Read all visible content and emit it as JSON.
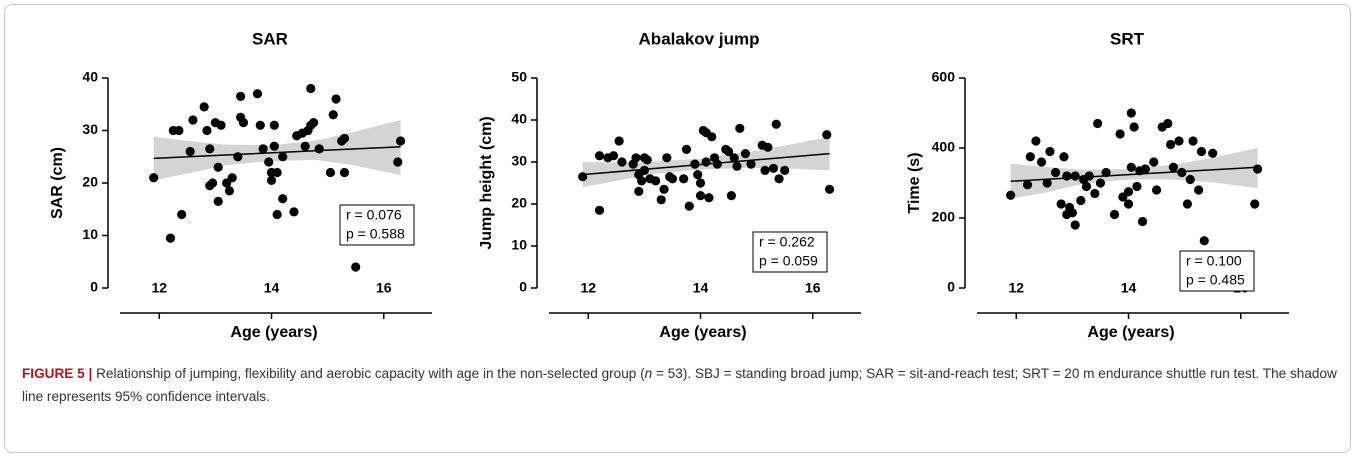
{
  "chart_data": [
    {
      "type": "scatter",
      "title": "SAR",
      "x_label": "Age (years)",
      "y_label": "SAR (cm)",
      "xlim": [
        11.3,
        16.86
      ],
      "xticks": [
        12,
        14,
        16
      ],
      "ylim": [
        0,
        40
      ],
      "yticks": [
        0,
        10,
        20,
        30,
        40
      ],
      "color": "#000000",
      "band_color": "#d4d4d4",
      "x": [
        11.9,
        12.2,
        12.25,
        12.35,
        12.4,
        12.55,
        12.6,
        12.8,
        12.85,
        12.9,
        12.9,
        12.95,
        13.0,
        13.05,
        13.05,
        13.1,
        13.2,
        13.25,
        13.3,
        13.4,
        13.45,
        13.45,
        13.5,
        13.75,
        13.8,
        13.85,
        13.95,
        14.0,
        14.0,
        14.05,
        14.05,
        14.1,
        14.1,
        14.2,
        14.2,
        14.4,
        14.45,
        14.55,
        14.6,
        14.65,
        14.7,
        14.7,
        14.75,
        14.85,
        15.05,
        15.1,
        15.15,
        15.25,
        15.3,
        15.3,
        15.5,
        16.25,
        16.3
      ],
      "values": [
        21,
        9.5,
        30,
        30,
        14,
        26,
        32,
        34.5,
        30,
        19.5,
        26.5,
        20,
        31.5,
        23,
        16.5,
        31,
        20,
        18.5,
        21,
        25,
        32.5,
        36.5,
        31.5,
        37,
        31,
        26.5,
        24,
        22,
        20.5,
        27,
        31,
        14,
        22,
        17,
        25,
        14.5,
        29,
        29.5,
        27,
        30,
        38,
        31,
        31.5,
        26.5,
        22,
        33,
        36,
        28,
        28.5,
        22,
        4,
        24,
        28
      ],
      "fit": {
        "x": [
          11.9,
          16.3
        ],
        "y": [
          24.7,
          26.9
        ]
      },
      "band": {
        "x": [
          11.9,
          12.5,
          13.2,
          14.0,
          14.8,
          15.5,
          16.3
        ],
        "upper": [
          28.8,
          28.0,
          27.3,
          27.2,
          28.1,
          29.8,
          32.0
        ],
        "lower": [
          20.5,
          21.8,
          23.4,
          24.2,
          24.4,
          23.3,
          21.5
        ]
      },
      "annotations": [
        "r = 0.076",
        "p = 0.588"
      ]
    },
    {
      "type": "scatter",
      "title": "Abalakov jump",
      "x_label": "Age (years)",
      "y_label": "Jump height (cm)",
      "xlim": [
        11.3,
        16.86
      ],
      "xticks": [
        12,
        14,
        16
      ],
      "ylim": [
        0,
        50
      ],
      "yticks": [
        0,
        10,
        20,
        30,
        40,
        50
      ],
      "color": "#000000",
      "band_color": "#d4d4d4",
      "x": [
        11.9,
        12.2,
        12.2,
        12.35,
        12.45,
        12.55,
        12.6,
        12.8,
        12.85,
        12.9,
        12.9,
        12.95,
        13.0,
        13.0,
        13.05,
        13.1,
        13.2,
        13.3,
        13.35,
        13.4,
        13.45,
        13.5,
        13.7,
        13.75,
        13.8,
        13.9,
        13.95,
        14.0,
        14.0,
        14.05,
        14.1,
        14.1,
        14.15,
        14.2,
        14.25,
        14.3,
        14.45,
        14.5,
        14.55,
        14.6,
        14.65,
        14.7,
        14.8,
        14.9,
        15.1,
        15.15,
        15.2,
        15.3,
        15.35,
        15.4,
        15.5,
        16.25,
        16.3
      ],
      "values": [
        26.5,
        18.5,
        31.5,
        31,
        31.5,
        35,
        30,
        29.5,
        31,
        23,
        27,
        25.5,
        31,
        28,
        30.5,
        26,
        25.5,
        21,
        23.5,
        31,
        26.5,
        26,
        26,
        33,
        19.5,
        29.5,
        27,
        25,
        22,
        37.5,
        37,
        30,
        21.5,
        36,
        31,
        29.5,
        33,
        32.5,
        22,
        31,
        29,
        38,
        32,
        29.5,
        34,
        28,
        33.5,
        28.5,
        39,
        26,
        28,
        36.5,
        23.5
      ],
      "fit": {
        "x": [
          11.9,
          16.3
        ],
        "y": [
          27,
          32
        ]
      },
      "band": {
        "x": [
          11.9,
          12.5,
          13.2,
          14.0,
          14.8,
          15.5,
          16.3
        ],
        "upper": [
          30,
          29.9,
          30.1,
          30.8,
          32.2,
          33.9,
          36
        ],
        "lower": [
          24,
          25.5,
          27.2,
          28.2,
          28.6,
          28.5,
          28
        ]
      },
      "annotations": [
        "r = 0.262",
        "p = 0.059"
      ]
    },
    {
      "type": "scatter",
      "title": "SRT",
      "x_label": "Age (years)",
      "y_label": "Time (s)",
      "xlim": [
        11.3,
        16.86
      ],
      "xticks": [
        12,
        14,
        16
      ],
      "ylim": [
        0,
        600
      ],
      "yticks": [
        0,
        200,
        400,
        600
      ],
      "color": "#000000",
      "band_color": "#d4d4d4",
      "x": [
        11.9,
        12.2,
        12.25,
        12.35,
        12.45,
        12.55,
        12.6,
        12.8,
        12.85,
        12.9,
        12.9,
        12.95,
        13.0,
        13.05,
        13.05,
        13.15,
        13.25,
        13.3,
        13.4,
        13.45,
        13.5,
        13.6,
        13.75,
        13.85,
        13.9,
        14.0,
        14.0,
        14.05,
        14.05,
        14.1,
        14.15,
        14.2,
        14.25,
        14.3,
        14.45,
        14.5,
        14.6,
        14.7,
        14.75,
        14.8,
        14.9,
        15.05,
        15.1,
        15.15,
        15.25,
        15.3,
        15.35,
        15.5,
        16.25,
        16.3,
        12.7,
        13.2,
        14.95
      ],
      "values": [
        265,
        295,
        375,
        420,
        360,
        300,
        390,
        240,
        375,
        210,
        320,
        230,
        215,
        180,
        320,
        250,
        290,
        320,
        270,
        470,
        300,
        330,
        210,
        440,
        260,
        240,
        275,
        500,
        345,
        460,
        290,
        335,
        190,
        340,
        360,
        280,
        460,
        470,
        410,
        345,
        420,
        240,
        310,
        420,
        280,
        390,
        135,
        385,
        240,
        340,
        330,
        310,
        330
      ],
      "fit": {
        "x": [
          11.9,
          16.3
        ],
        "y": [
          305,
          345
        ]
      },
      "band": {
        "x": [
          11.9,
          12.5,
          13.2,
          14.0,
          14.8,
          15.5,
          16.3
        ],
        "upper": [
          355,
          346,
          338,
          340,
          352,
          372,
          400
        ],
        "lower": [
          255,
          272,
          298,
          310,
          310,
          302,
          285
        ]
      },
      "annotations": [
        "r = 0.100",
        "p = 0.485"
      ]
    }
  ],
  "caption": {
    "label": "FIGURE 5 |",
    "text_before": "Relationship of jumping, flexibility and aerobic capacity with age in the non-selected group (",
    "italic": "n",
    "text_after": " = 53). SBJ = standing broad jump; SAR = sit-and-reach test; SRT = 20 m endurance shuttle run test. The shadow line represents 95% confidence intervals."
  }
}
